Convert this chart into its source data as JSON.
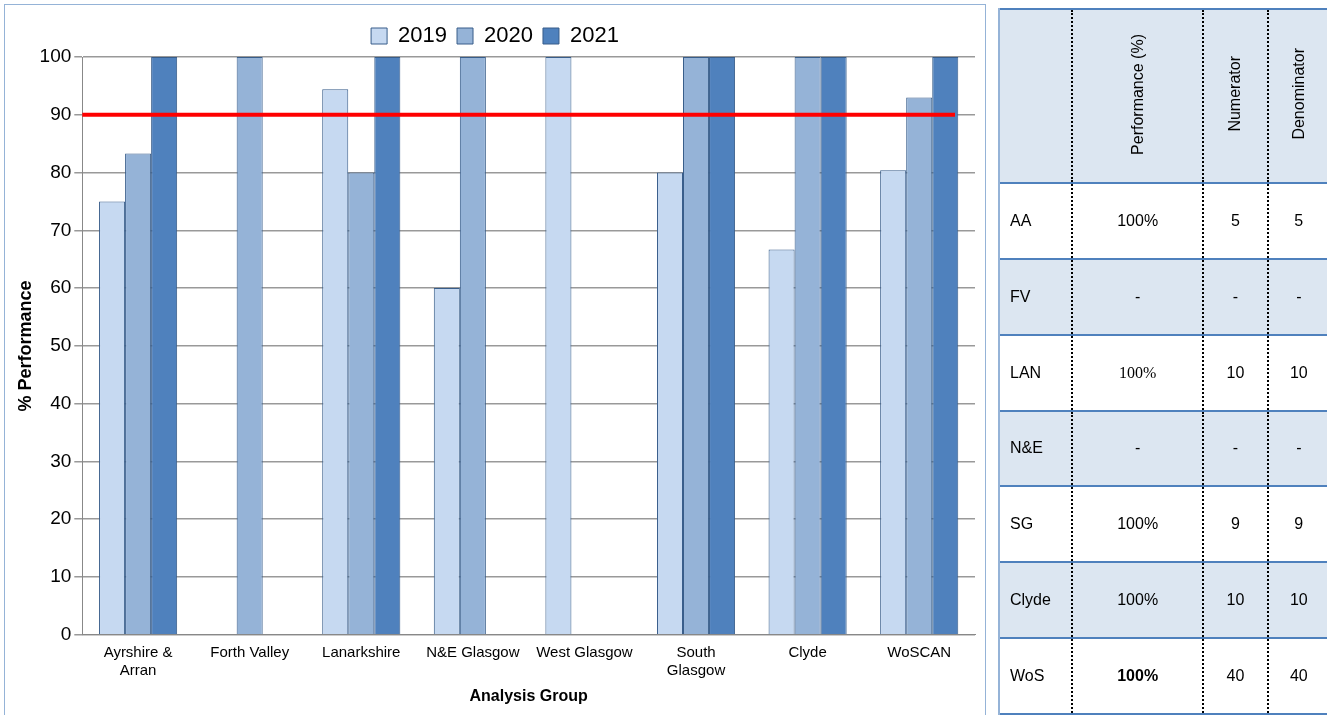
{
  "chart_data": [
    {
      "type": "bar",
      "xlabel": "Analysis Group",
      "ylabel": "% Performance",
      "categories": [
        "Ayrshire & Arran",
        "Forth Valley",
        "Lanarkshire",
        "N&E Glasgow",
        "West Glasgow",
        "South Glasgow",
        "Clyde",
        "WoSCAN"
      ],
      "series": [
        {
          "name": "2019",
          "color": "#c6d9f1",
          "values": [
            75,
            null,
            94.4,
            60,
            100,
            80,
            66.7,
            80.4
          ]
        },
        {
          "name": "2020",
          "color": "#95b3d7",
          "values": [
            83.3,
            100,
            80,
            100,
            null,
            100,
            100,
            93
          ]
        },
        {
          "name": "2021",
          "color": "#4f81bd",
          "values": [
            100,
            null,
            100,
            null,
            null,
            100,
            100,
            100
          ]
        }
      ],
      "ylim": [
        0,
        100
      ],
      "yticks": [
        0,
        10,
        20,
        30,
        40,
        50,
        60,
        70,
        80,
        90,
        100
      ],
      "grid": "y",
      "legend": "top",
      "ref_lines": [
        {
          "axis": "y",
          "value": 90,
          "color": "#ff0000"
        }
      ]
    },
    {
      "type": "other",
      "categories": [
        "Performance (%)",
        "Numerator",
        "Denominator"
      ],
      "y_categories": [
        "AA",
        "FV",
        "LAN",
        "N&E",
        "SG",
        "Clyde",
        "WoS"
      ],
      "cell_labels": [
        [
          "100%",
          "5",
          "5"
        ],
        [
          "-",
          "-",
          "-"
        ],
        [
          "100%",
          "10",
          "10"
        ],
        [
          "-",
          "-",
          "-"
        ],
        [
          "100%",
          "9",
          "9"
        ],
        [
          "100%",
          "10",
          "10"
        ],
        [
          "100%",
          "40",
          "40"
        ]
      ]
    }
  ]
}
